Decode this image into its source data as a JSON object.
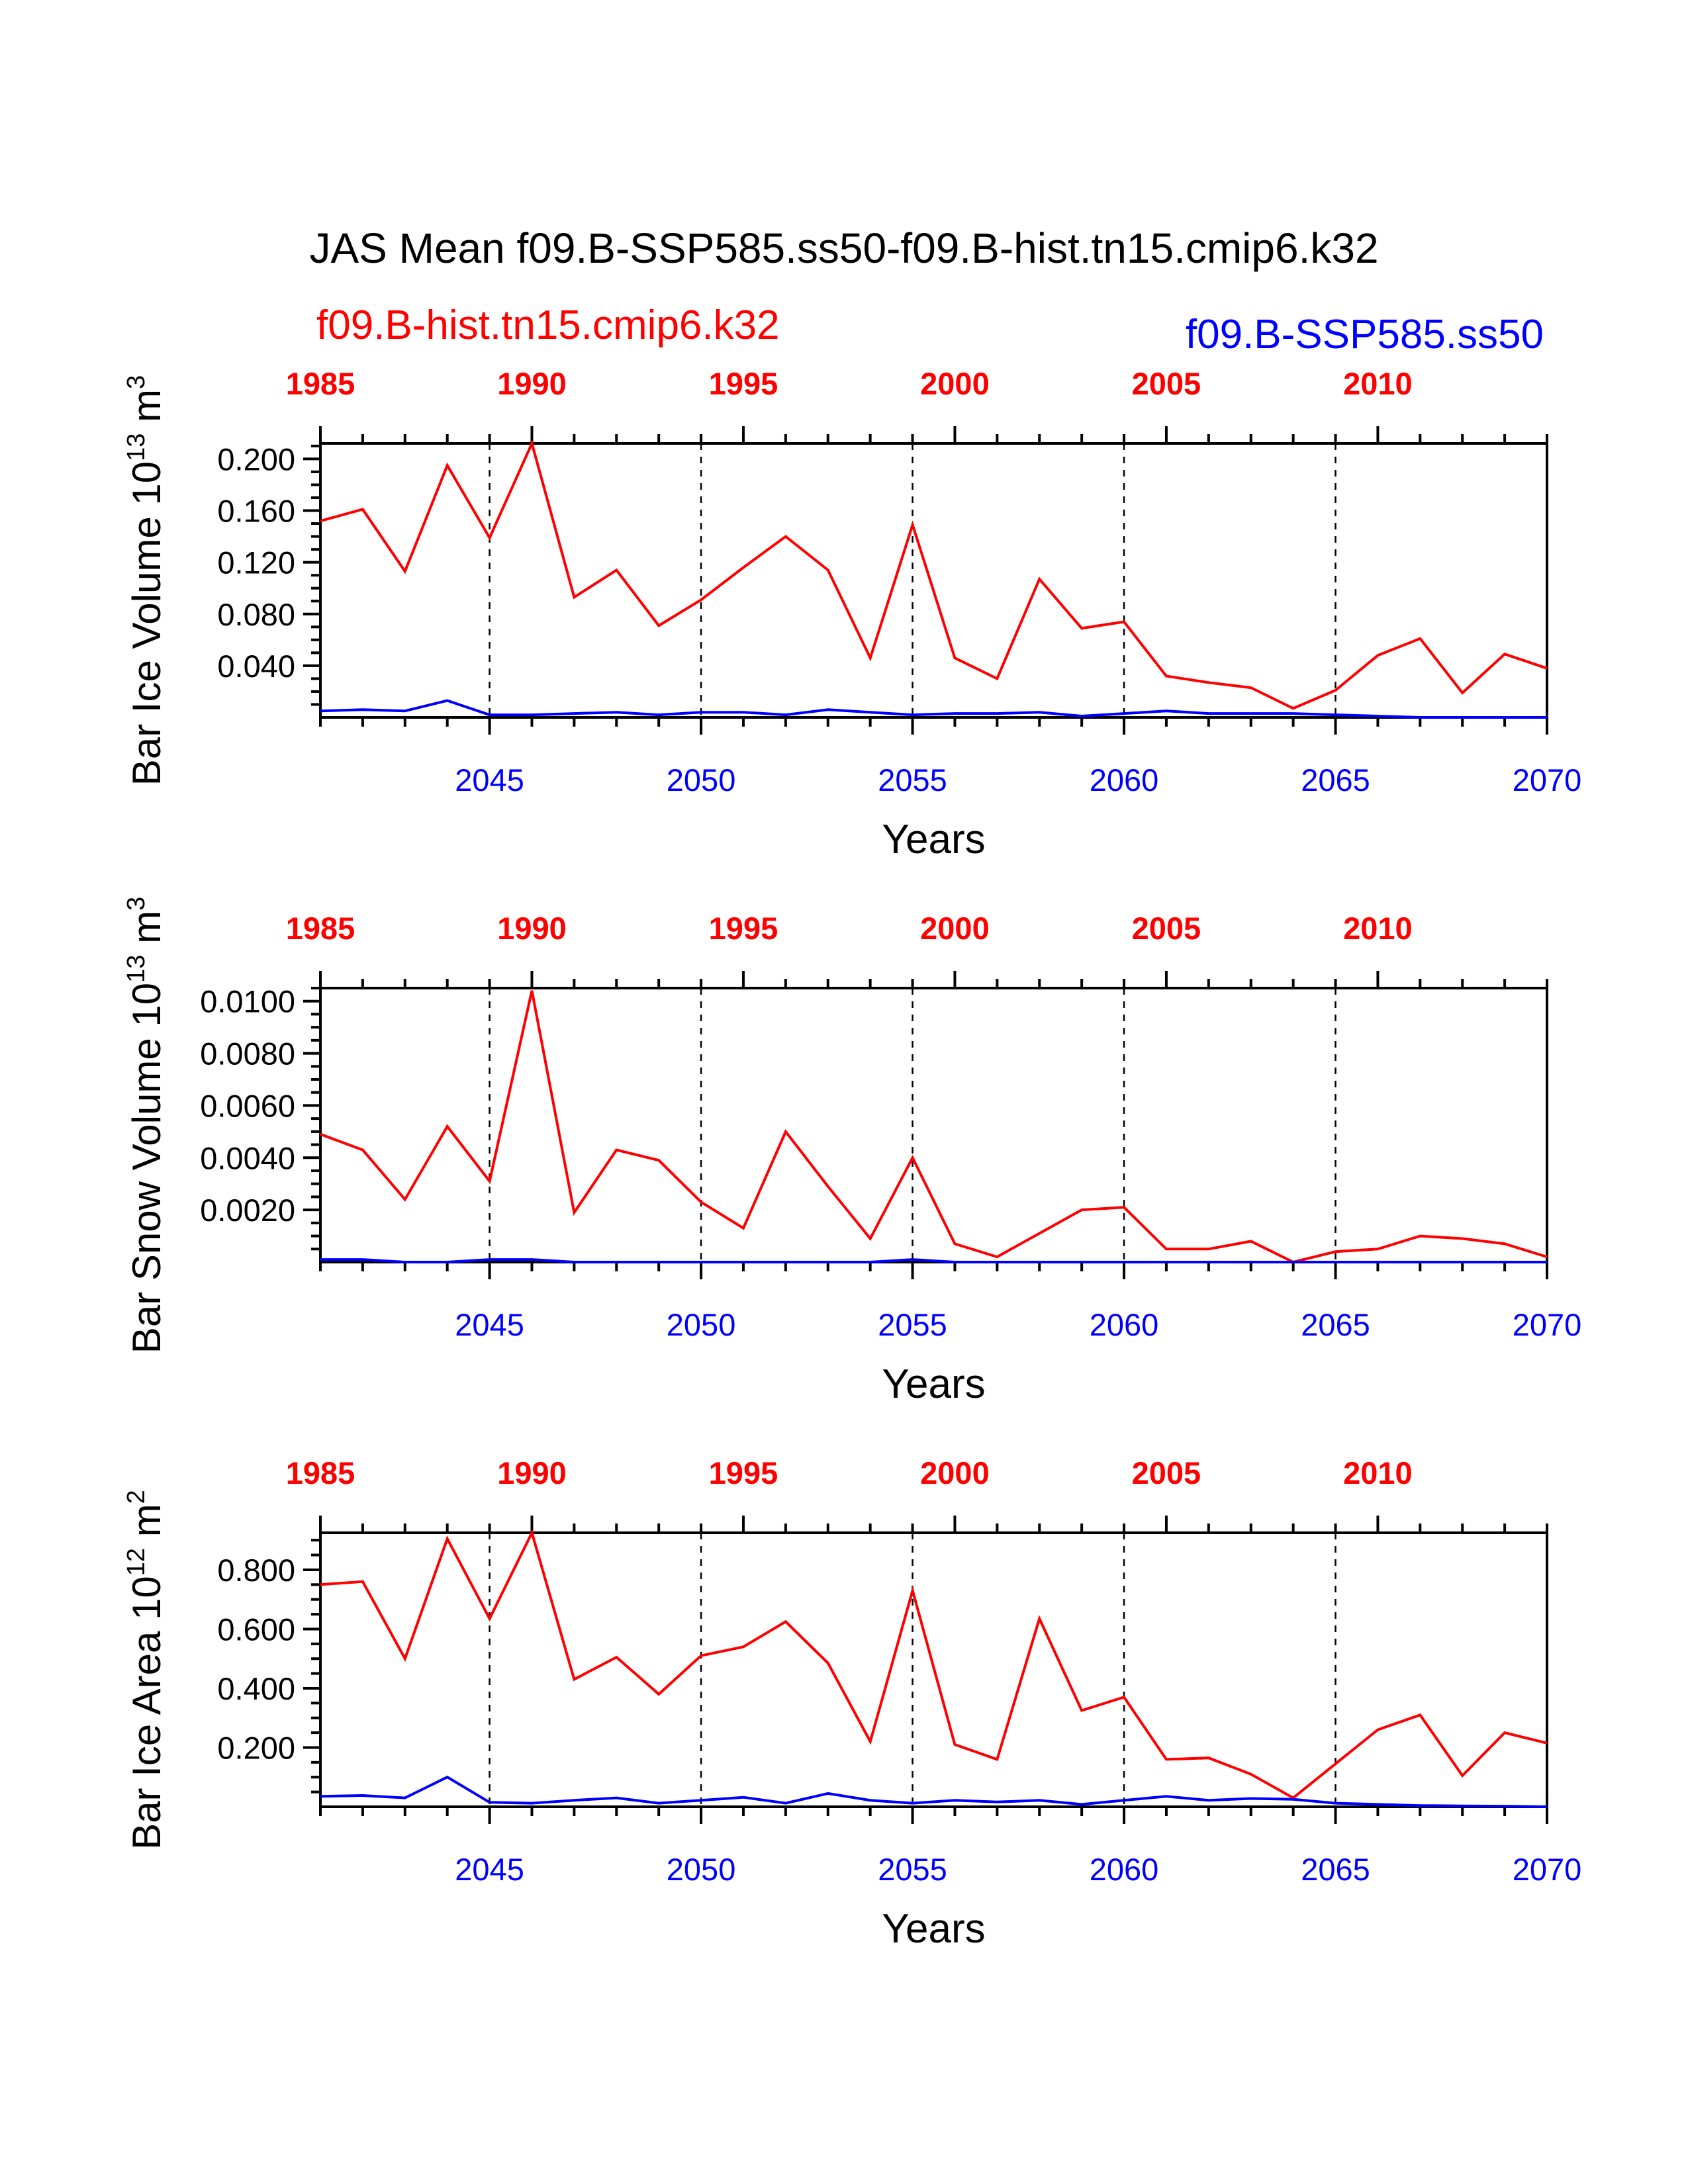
{
  "title": "JAS Mean f09.B-SSP585.ss50-f09.B-hist.tn15.cmip6.k32",
  "legend": {
    "left": "f09.B-hist.tn15.cmip6.k32",
    "right": "f09.B-SSP585.ss50"
  },
  "colors": {
    "hist": "#ff0000",
    "ssp": "#0000ff",
    "axis": "#000000"
  },
  "top_axis": {
    "ticks": [
      "1985",
      "1990",
      "1995",
      "2000",
      "2005",
      "2010"
    ]
  },
  "bottom_axis": {
    "ticks": [
      "2045",
      "2050",
      "2055",
      "2060",
      "2065",
      "2070"
    ]
  },
  "chart_data": [
    {
      "type": "line",
      "ylabel": "Bar Ice Volume 10",
      "ylabel_exp": "13",
      "ylabel_unit": " m",
      "ylabel_unit_exp": "3",
      "xlabel": "Years",
      "ylim": [
        0,
        0.212
      ],
      "yticks": [
        "0.040",
        "0.080",
        "0.120",
        "0.160",
        "0.200"
      ],
      "ytick_values": [
        0.04,
        0.08,
        0.12,
        0.16,
        0.2
      ],
      "x_bottom": [
        2041,
        2042,
        2043,
        2044,
        2045,
        2046,
        2047,
        2048,
        2049,
        2050,
        2051,
        2052,
        2053,
        2054,
        2055,
        2056,
        2057,
        2058,
        2059,
        2060,
        2061,
        2062,
        2063,
        2064,
        2065,
        2066,
        2067,
        2068,
        2069,
        2070
      ],
      "series": [
        {
          "name": "f09.B-hist.tn15.cmip6.k32",
          "values": [
            0.152,
            0.161,
            0.113,
            0.195,
            0.139,
            0.212,
            0.093,
            0.114,
            0.071,
            0.091,
            0.116,
            0.14,
            0.114,
            0.046,
            0.149,
            0.046,
            0.03,
            0.107,
            0.069,
            0.074,
            0.032,
            0.027,
            0.023,
            0.007,
            0.021,
            0.048,
            0.061,
            0.019,
            0.049,
            0.038
          ]
        },
        {
          "name": "f09.B-SSP585.ss50",
          "values": [
            0.005,
            0.006,
            0.005,
            0.013,
            0.002,
            0.002,
            0.003,
            0.004,
            0.002,
            0.004,
            0.004,
            0.002,
            0.006,
            0.004,
            0.002,
            0.003,
            0.003,
            0.004,
            0.001,
            0.003,
            0.005,
            0.003,
            0.003,
            0.003,
            0.002,
            0.001,
            0.0,
            0.0,
            0.0,
            0.0
          ]
        }
      ]
    },
    {
      "type": "line",
      "ylabel": "Bar Snow Volume 10",
      "ylabel_exp": "13",
      "ylabel_unit": " m",
      "ylabel_unit_exp": "3",
      "xlabel": "Years",
      "ylim": [
        0,
        0.0105
      ],
      "yticks": [
        "0.0020",
        "0.0040",
        "0.0060",
        "0.0080",
        "0.0100"
      ],
      "ytick_values": [
        0.002,
        0.004,
        0.006,
        0.008,
        0.01
      ],
      "x_bottom": [
        2041,
        2042,
        2043,
        2044,
        2045,
        2046,
        2047,
        2048,
        2049,
        2050,
        2051,
        2052,
        2053,
        2054,
        2055,
        2056,
        2057,
        2058,
        2059,
        2060,
        2061,
        2062,
        2063,
        2064,
        2065,
        2066,
        2067,
        2068,
        2069,
        2070
      ],
      "series": [
        {
          "name": "f09.B-hist.tn15.cmip6.k32",
          "values": [
            0.0049,
            0.0043,
            0.0024,
            0.0052,
            0.0031,
            0.0104,
            0.0019,
            0.0043,
            0.0039,
            0.0023,
            0.0013,
            0.005,
            0.0029,
            0.0009,
            0.004,
            0.0007,
            0.0002,
            0.0011,
            0.002,
            0.0021,
            0.0005,
            0.0005,
            0.0008,
            0.0,
            0.0004,
            0.0005,
            0.001,
            0.0009,
            0.0007,
            0.0002
          ]
        },
        {
          "name": "f09.B-SSP585.ss50",
          "values": [
            0.0001,
            0.0001,
            0.0,
            0.0,
            0.0001,
            0.0001,
            0.0,
            0.0,
            0.0,
            0.0,
            0.0,
            0.0,
            0.0,
            0.0,
            0.0001,
            0.0,
            0.0,
            0.0,
            0.0,
            0.0,
            0.0,
            0.0,
            0.0,
            0.0,
            0.0,
            0.0,
            0.0,
            0.0,
            0.0,
            0.0
          ]
        }
      ]
    },
    {
      "type": "line",
      "ylabel": "Bar Ice Area 10",
      "ylabel_exp": "12",
      "ylabel_unit": " m",
      "ylabel_unit_exp": "2",
      "xlabel": "Years",
      "ylim": [
        0,
        0.925
      ],
      "yticks": [
        "0.200",
        "0.400",
        "0.600",
        "0.800"
      ],
      "ytick_values": [
        0.2,
        0.4,
        0.6,
        0.8
      ],
      "x_bottom": [
        2041,
        2042,
        2043,
        2044,
        2045,
        2046,
        2047,
        2048,
        2049,
        2050,
        2051,
        2052,
        2053,
        2054,
        2055,
        2056,
        2057,
        2058,
        2059,
        2060,
        2061,
        2062,
        2063,
        2064,
        2065,
        2066,
        2067,
        2068,
        2069,
        2070
      ],
      "series": [
        {
          "name": "f09.B-hist.tn15.cmip6.k32",
          "values": [
            0.75,
            0.76,
            0.5,
            0.905,
            0.635,
            0.925,
            0.43,
            0.505,
            0.38,
            0.51,
            0.54,
            0.625,
            0.485,
            0.22,
            0.73,
            0.21,
            0.16,
            0.635,
            0.325,
            0.37,
            0.16,
            0.165,
            0.11,
            0.03,
            0.145,
            0.26,
            0.31,
            0.105,
            0.25,
            0.215
          ]
        },
        {
          "name": "f09.B-SSP585.ss50",
          "values": [
            0.035,
            0.038,
            0.03,
            0.1,
            0.015,
            0.012,
            0.022,
            0.03,
            0.012,
            0.022,
            0.032,
            0.012,
            0.045,
            0.022,
            0.012,
            0.022,
            0.016,
            0.022,
            0.008,
            0.022,
            0.035,
            0.022,
            0.028,
            0.025,
            0.012,
            0.008,
            0.004,
            0.003,
            0.002,
            0.0
          ]
        }
      ]
    }
  ]
}
